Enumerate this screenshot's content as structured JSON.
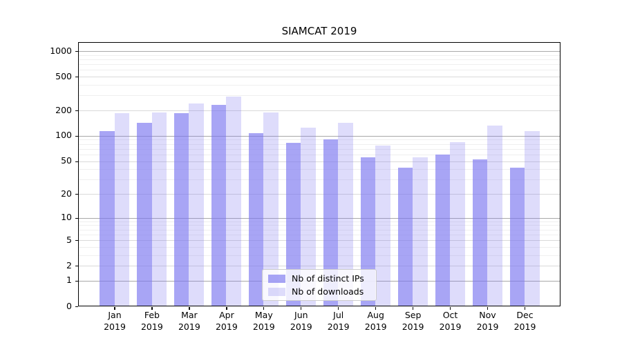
{
  "title": "SIAMCAT 2019",
  "chart_data": {
    "type": "bar",
    "title": "SIAMCAT 2019",
    "categories": [
      "Jan 2019",
      "Feb 2019",
      "Mar 2019",
      "Apr 2019",
      "May 2019",
      "Jun 2019",
      "Jul 2019",
      "Aug 2019",
      "Sep 2019",
      "Oct 2019",
      "Nov 2019",
      "Dec 2019"
    ],
    "series": [
      {
        "name": "Nb of distinct IPs",
        "color": "rgba(122,117,240,0.65)",
        "values": [
          114,
          143,
          186,
          233,
          108,
          83,
          90,
          56,
          42,
          60,
          52,
          42
        ]
      },
      {
        "name": "Nb of downloads",
        "color": "rgba(122,117,240,0.25)",
        "values": [
          186,
          189,
          242,
          292,
          188,
          126,
          143,
          77,
          56,
          85,
          133,
          114
        ]
      }
    ],
    "xlabel": "",
    "ylabel": "",
    "yscale": "log1p",
    "ylim": [
      0,
      1276
    ],
    "yticks": [
      0,
      1,
      2,
      5,
      10,
      20,
      50,
      100,
      200,
      500,
      1000
    ],
    "y_minor_gridlines": [
      3,
      4,
      6,
      7,
      8,
      9,
      30,
      40,
      60,
      70,
      80,
      90,
      300,
      400,
      600,
      700,
      800,
      900
    ],
    "grid": "horizontal major+minor",
    "legend_position": "inside lower-center"
  }
}
